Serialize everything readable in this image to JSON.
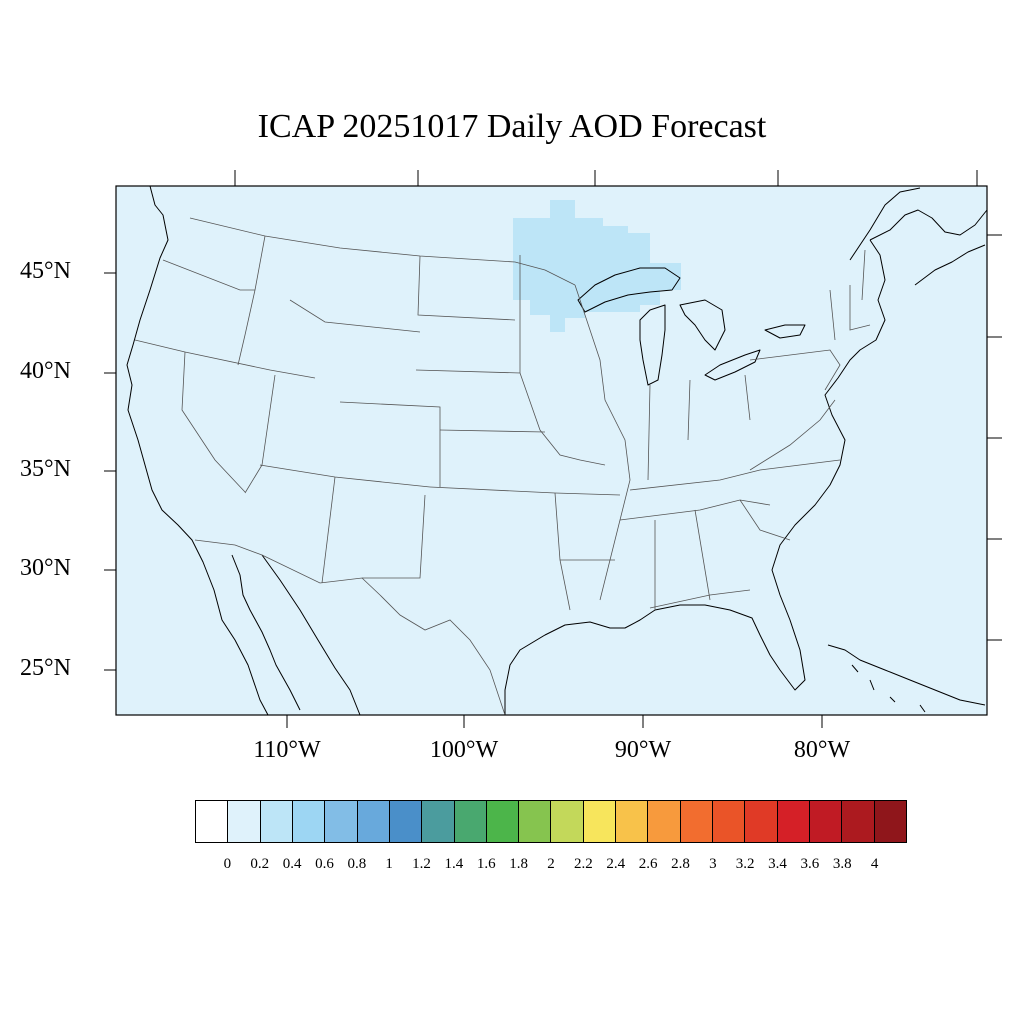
{
  "title": "ICAP 20251017 Daily AOD Forecast",
  "map": {
    "background_color": "#dff2fb",
    "lat_labels": [
      "45°N",
      "40°N",
      "35°N",
      "30°N",
      "25°N"
    ],
    "lon_labels": [
      "110°W",
      "100°W",
      "90°W",
      "80°W"
    ],
    "aod_field": [
      {
        "region": "Lake Superior / western Great Lakes",
        "aod_range": "0.2–0.4",
        "color": "#bde5f7"
      }
    ]
  },
  "colorbar": {
    "colors": [
      "#ffffff",
      "#dff2fb",
      "#bde5f7",
      "#9dd6f3",
      "#82bde6",
      "#68a9dc",
      "#4a8fc9",
      "#4b9c9e",
      "#49a86f",
      "#4cb54a",
      "#86c44f",
      "#c3d85a",
      "#f7e55c",
      "#f8c24a",
      "#f79a3d",
      "#f26d2f",
      "#ea5428",
      "#e03a26",
      "#d52027",
      "#c01b24",
      "#ac1a1f",
      "#8f161b"
    ],
    "labels": [
      "0",
      "0.2",
      "0.4",
      "0.6",
      "0.8",
      "1",
      "1.2",
      "1.4",
      "1.6",
      "1.8",
      "2",
      "2.2",
      "2.4",
      "2.6",
      "2.8",
      "3",
      "3.2",
      "3.4",
      "3.6",
      "3.8",
      "4"
    ]
  }
}
